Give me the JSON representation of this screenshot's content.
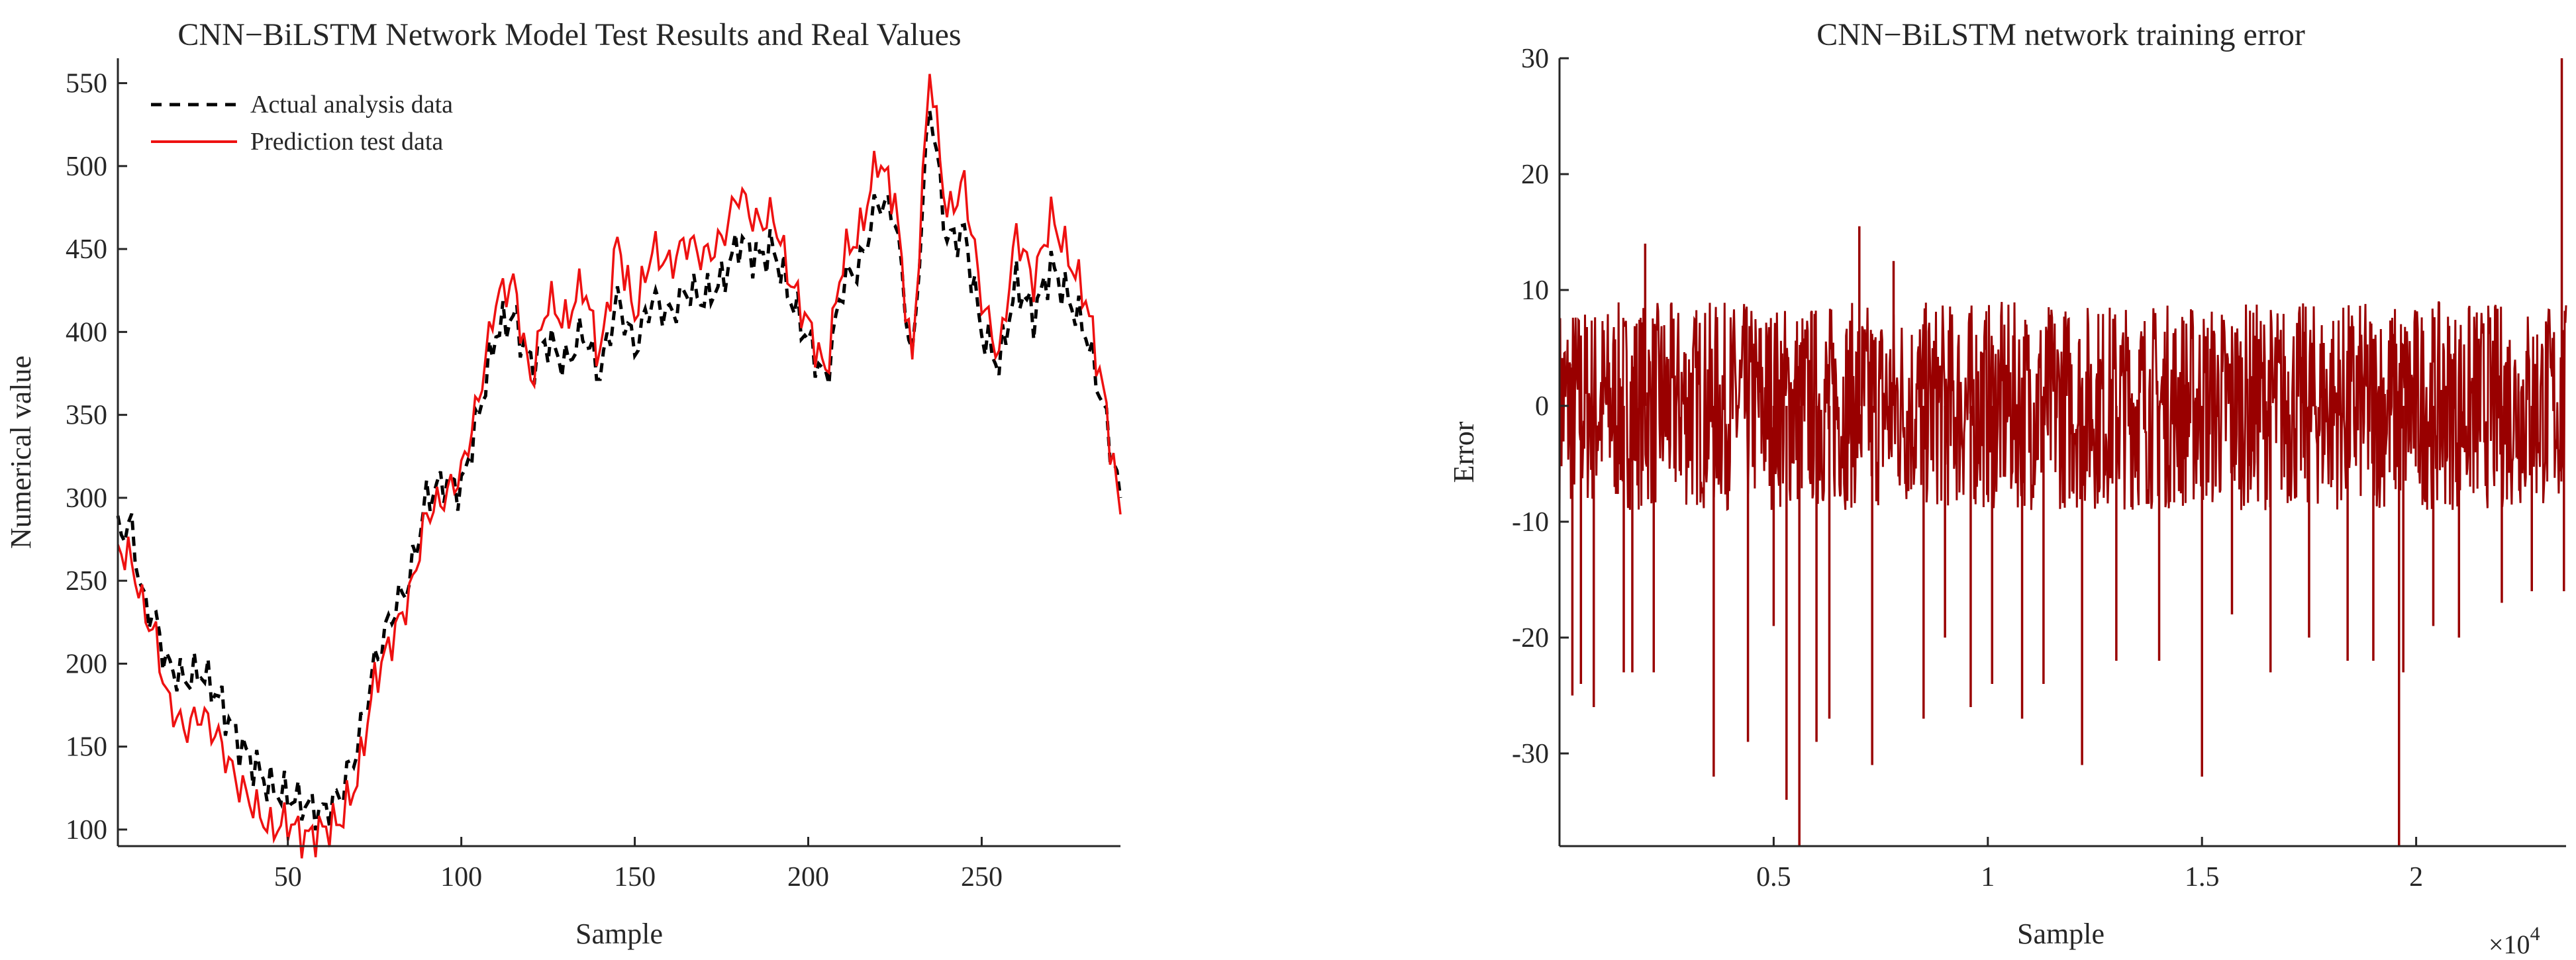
{
  "chart_data": [
    {
      "type": "line",
      "title": "CNN−BiLSTM Network Model Test Results and Real Values",
      "xlabel": "Sample",
      "ylabel": "Numerical value",
      "xlim": [
        1,
        290
      ],
      "ylim": [
        90,
        565
      ],
      "xticks": [
        50,
        100,
        150,
        200,
        250
      ],
      "xtick_labels": [
        "50",
        "100",
        "150",
        "200",
        "250"
      ],
      "yticks": [
        100,
        150,
        200,
        250,
        300,
        350,
        400,
        450,
        500,
        550
      ],
      "ytick_labels": [
        "100",
        "150",
        "200",
        "250",
        "300",
        "350",
        "400",
        "450",
        "500",
        "550"
      ],
      "legend_position": "top-left",
      "grid": false,
      "series": [
        {
          "name": "Actual analysis data",
          "color": "#000000",
          "style": "dashed",
          "x": [
            1,
            5,
            8,
            12,
            15,
            20,
            25,
            30,
            35,
            40,
            45,
            50,
            55,
            60,
            65,
            70,
            75,
            80,
            85,
            90,
            95,
            100,
            105,
            110,
            115,
            120,
            125,
            130,
            135,
            140,
            145,
            150,
            155,
            160,
            165,
            170,
            175,
            180,
            185,
            190,
            195,
            200,
            205,
            210,
            215,
            220,
            225,
            230,
            235,
            240,
            245,
            250,
            255,
            260,
            265,
            270,
            275,
            280,
            285,
            290
          ],
          "values": [
            280,
            282,
            240,
            225,
            200,
            190,
            195,
            180,
            155,
            140,
            125,
            120,
            115,
            110,
            120,
            150,
            200,
            230,
            250,
            300,
            310,
            305,
            350,
            400,
            410,
            380,
            395,
            380,
            400,
            375,
            420,
            390,
            420,
            410,
            425,
            420,
            430,
            455,
            445,
            450,
            420,
            395,
            370,
            430,
            440,
            480,
            470,
            380,
            540,
            455,
            460,
            400,
            380,
            430,
            410,
            440,
            420,
            400,
            355,
            300
          ]
        },
        {
          "name": "Prediction test data",
          "color": "#ee1111",
          "style": "solid",
          "x": [
            1,
            5,
            8,
            12,
            15,
            20,
            25,
            30,
            35,
            40,
            45,
            50,
            55,
            60,
            65,
            70,
            75,
            80,
            85,
            90,
            95,
            100,
            105,
            110,
            115,
            120,
            125,
            130,
            135,
            140,
            145,
            150,
            155,
            160,
            165,
            170,
            175,
            180,
            185,
            190,
            195,
            200,
            205,
            210,
            215,
            220,
            225,
            230,
            235,
            240,
            245,
            250,
            255,
            260,
            265,
            270,
            275,
            280,
            285,
            290
          ],
          "values": [
            270,
            262,
            235,
            215,
            180,
            160,
            170,
            155,
            130,
            115,
            100,
            105,
            95,
            100,
            105,
            130,
            190,
            215,
            240,
            290,
            300,
            315,
            360,
            420,
            430,
            370,
            420,
            405,
            430,
            385,
            455,
            410,
            450,
            440,
            455,
            445,
            455,
            485,
            465,
            470,
            430,
            405,
            375,
            445,
            460,
            505,
            480,
            380,
            560,
            470,
            490,
            420,
            385,
            460,
            430,
            470,
            445,
            420,
            365,
            290
          ]
        }
      ]
    },
    {
      "type": "line",
      "title": "CNN−BiLSTM network training error",
      "xlabel": "Sample",
      "ylabel": "Error",
      "xlim": [
        0,
        23500
      ],
      "ylim": [
        -38,
        30
      ],
      "xticks": [
        5000,
        10000,
        15000,
        20000
      ],
      "xtick_labels": [
        "0.5",
        "1",
        "1.5",
        "2"
      ],
      "x_exponent_label": "×10",
      "x_exponent_power": "4",
      "yticks": [
        -30,
        -20,
        -10,
        0,
        10,
        20,
        30
      ],
      "ytick_labels": [
        "-30",
        "-20",
        "-10",
        "0",
        "10",
        "20",
        "30"
      ],
      "grid": false,
      "series": [
        {
          "name": "Error",
          "color": "#990000",
          "style": "solid",
          "band_range": [
            -9,
            9
          ],
          "spikes": [
            {
              "x": 300,
              "y": -25
            },
            {
              "x": 500,
              "y": -24
            },
            {
              "x": 800,
              "y": -26
            },
            {
              "x": 1500,
              "y": -23
            },
            {
              "x": 1700,
              "y": -23
            },
            {
              "x": 2000,
              "y": 14
            },
            {
              "x": 2200,
              "y": -23
            },
            {
              "x": 3600,
              "y": -32
            },
            {
              "x": 4400,
              "y": -29
            },
            {
              "x": 5000,
              "y": -19
            },
            {
              "x": 5300,
              "y": -34
            },
            {
              "x": 5600,
              "y": -38
            },
            {
              "x": 6000,
              "y": -29
            },
            {
              "x": 6300,
              "y": -27
            },
            {
              "x": 7000,
              "y": 15.5
            },
            {
              "x": 7300,
              "y": -31
            },
            {
              "x": 7800,
              "y": 12.5
            },
            {
              "x": 8500,
              "y": -27
            },
            {
              "x": 9000,
              "y": -20
            },
            {
              "x": 9600,
              "y": -26
            },
            {
              "x": 10100,
              "y": -24
            },
            {
              "x": 10800,
              "y": -27
            },
            {
              "x": 11300,
              "y": -24
            },
            {
              "x": 12200,
              "y": -31
            },
            {
              "x": 13000,
              "y": -22
            },
            {
              "x": 14000,
              "y": -22
            },
            {
              "x": 15000,
              "y": -32
            },
            {
              "x": 15700,
              "y": -18
            },
            {
              "x": 16600,
              "y": -23
            },
            {
              "x": 17500,
              "y": -20
            },
            {
              "x": 18400,
              "y": -22
            },
            {
              "x": 19000,
              "y": -22
            },
            {
              "x": 19600,
              "y": -38
            },
            {
              "x": 19700,
              "y": -23
            },
            {
              "x": 20400,
              "y": -19
            },
            {
              "x": 21000,
              "y": -20
            },
            {
              "x": 22000,
              "y": -17
            },
            {
              "x": 22700,
              "y": -16
            },
            {
              "x": 23400,
              "y": 30
            },
            {
              "x": 23450,
              "y": -16
            }
          ]
        }
      ]
    }
  ]
}
